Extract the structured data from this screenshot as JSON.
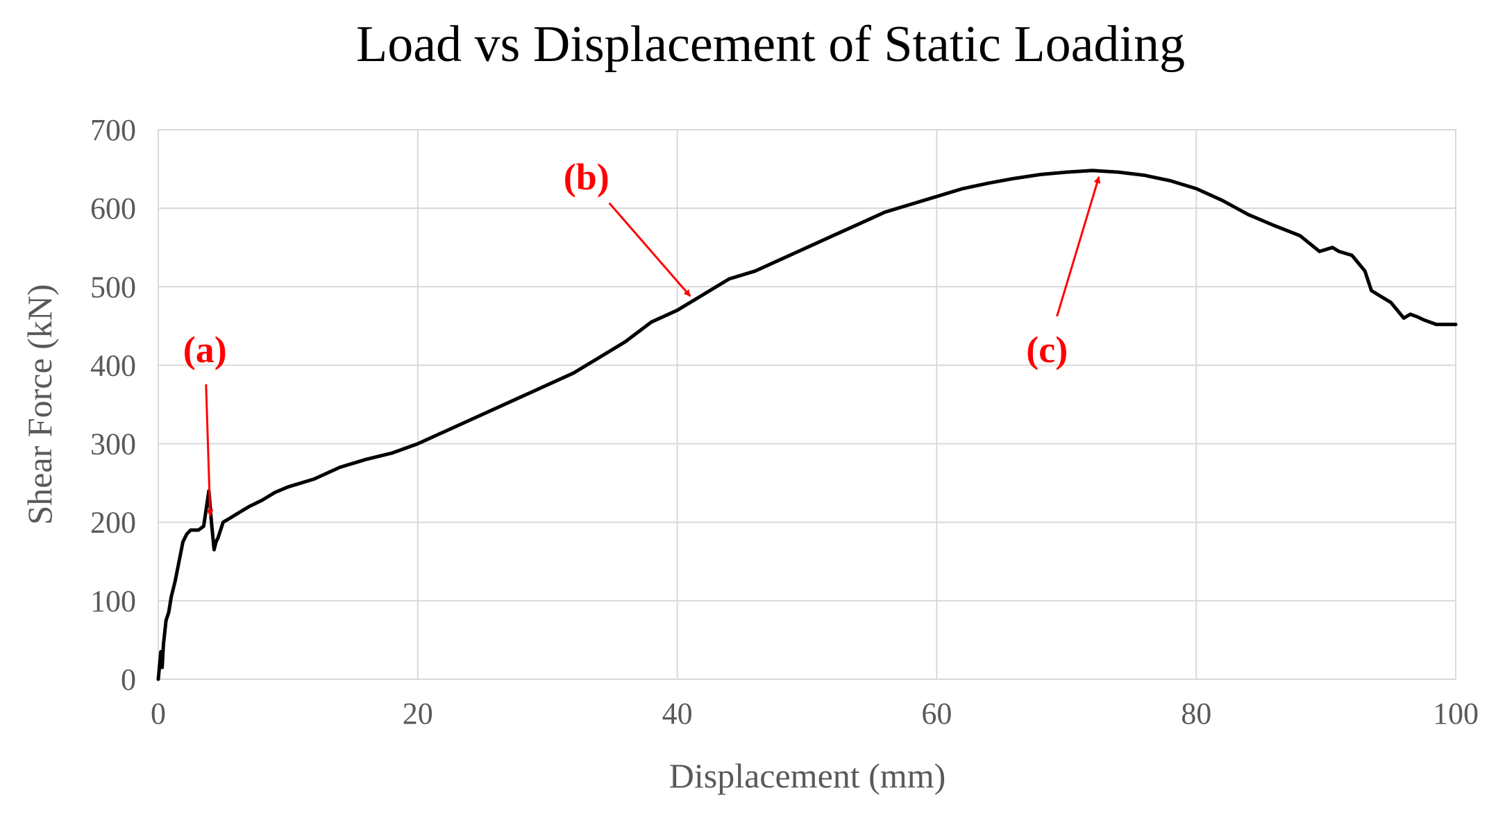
{
  "colors": {
    "line": "#000000",
    "annotation": "#ff0000",
    "grid": "#d9d9d9",
    "tick_text": "#595959",
    "title_text": "#000000",
    "background": "#ffffff"
  },
  "chart_data": {
    "type": "line",
    "title": "Load vs Displacement of Static Loading",
    "xlabel": "Displacement (mm)",
    "ylabel": "Shear Force (kN)",
    "xlim": [
      0,
      100
    ],
    "ylim": [
      0,
      700
    ],
    "x_ticks": [
      "0",
      "20",
      "40",
      "60",
      "80",
      "100"
    ],
    "y_ticks": [
      "0",
      "100",
      "200",
      "300",
      "400",
      "500",
      "600",
      "700"
    ],
    "grid": true,
    "legend": "none",
    "series": [
      {
        "x": [
          0,
          0.2,
          0.3,
          0.4,
          0.6,
          0.8,
          1.0,
          1.3,
          1.6,
          1.9,
          2.2,
          2.5,
          2.8,
          3.1,
          3.5,
          3.9,
          4.1,
          4.3,
          4.45,
          4.6,
          5.0,
          5.5,
          6.0,
          7.0,
          8.0,
          9.0,
          10.0,
          12.0,
          14.0,
          16.0,
          18.0,
          20.0,
          22.0,
          24.0,
          26.0,
          28.0,
          30.0,
          32.0,
          34.0,
          36.0,
          38.0,
          40.0,
          42.0,
          44.0,
          46.0,
          48.0,
          50.0,
          52.0,
          54.0,
          56.0,
          58.0,
          60.0,
          62.0,
          64.0,
          66.0,
          68.0,
          70.0,
          72.0,
          74.0,
          76.0,
          78.0,
          80.0,
          82.0,
          84.0,
          86.0,
          88.0,
          89.5,
          90.5,
          91.0,
          92.0,
          93.0,
          93.5,
          94.0,
          95.0,
          96.0,
          96.5,
          97.0,
          97.5,
          98.0,
          98.5,
          99.0,
          100.0
        ],
        "y": [
          0,
          35,
          15,
          45,
          75,
          85,
          105,
          125,
          150,
          175,
          185,
          190,
          190,
          190,
          195,
          240,
          200,
          165,
          175,
          180,
          200,
          205,
          210,
          220,
          228,
          238,
          245,
          255,
          270,
          280,
          288,
          300,
          315,
          330,
          345,
          360,
          375,
          390,
          410,
          430,
          455,
          470,
          490,
          510,
          520,
          535,
          550,
          565,
          580,
          595,
          605,
          615,
          625,
          632,
          638,
          643,
          646,
          648,
          646,
          642,
          635,
          625,
          610,
          592,
          578,
          565,
          545,
          550,
          545,
          540,
          520,
          495,
          490,
          480,
          460,
          465,
          462,
          458,
          455,
          452,
          452,
          452
        ]
      }
    ],
    "annotations": [
      {
        "label": "(a)",
        "label_x": 3.6,
        "label_y": 420,
        "point_x": 4.0,
        "point_y": 208
      },
      {
        "label": "(b)",
        "label_x": 33.0,
        "label_y": 640,
        "point_x": 41.0,
        "point_y": 488
      },
      {
        "label": "(c)",
        "label_x": 68.5,
        "label_y": 420,
        "point_x": 72.5,
        "point_y": 640
      }
    ]
  }
}
